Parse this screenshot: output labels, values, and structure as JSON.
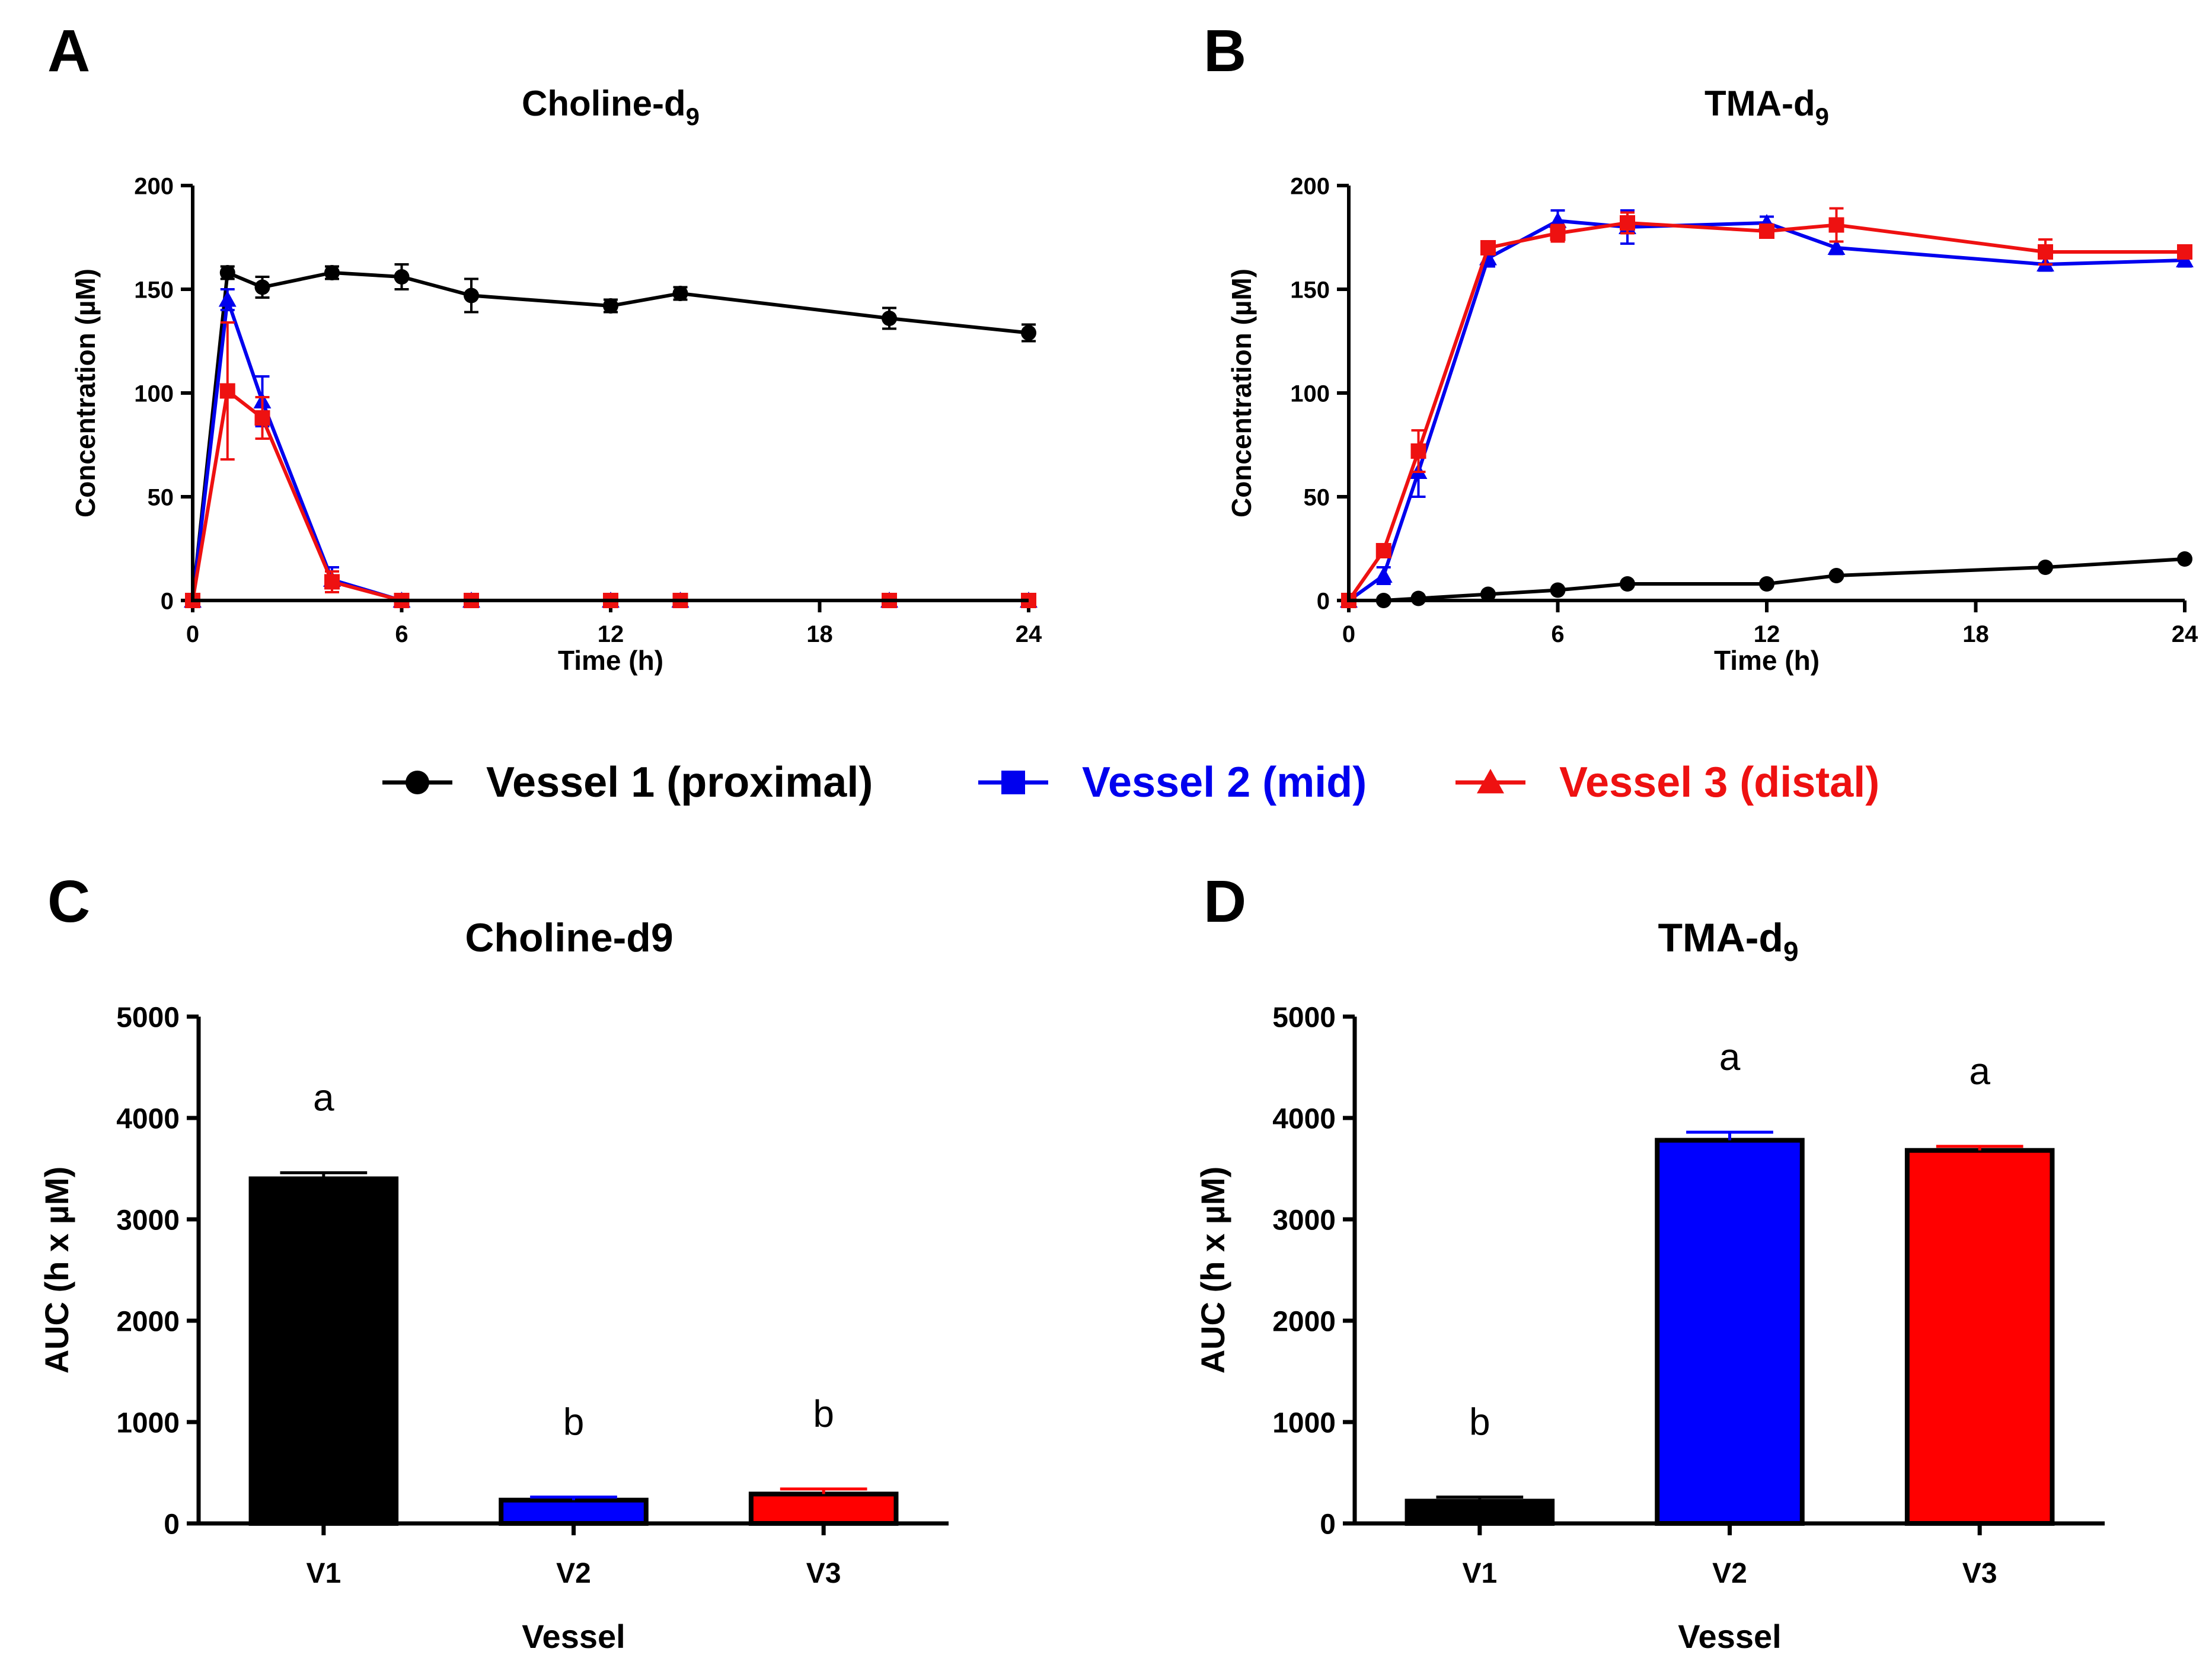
{
  "colors": {
    "v1": "#000000",
    "v2": "#0000EE",
    "v3": "#EE1111",
    "bar_v1": "#000000",
    "bar_v2": "#0000FF",
    "bar_v3": "#FF0000"
  },
  "legend": {
    "items": [
      {
        "label": "Vessel 1 (proximal)",
        "marker": "circle",
        "color": "#000000"
      },
      {
        "label": "Vessel 2 (mid)",
        "marker": "square",
        "color": "#0000EE"
      },
      {
        "label": "Vessel 3 (distal)",
        "marker": "triangle",
        "color": "#EE1111"
      }
    ]
  },
  "chart_data": [
    {
      "panel_letter": "A",
      "type": "line",
      "title": "Choline-d",
      "title_sub": "9",
      "xlabel": "Time (h)",
      "ylabel": "Concentration (µM)",
      "xlim": [
        0,
        24
      ],
      "ylim": [
        0,
        200
      ],
      "xticks": [
        "0",
        "6",
        "12",
        "18",
        "24"
      ],
      "yticks": [
        "0",
        "50",
        "100",
        "150",
        "200"
      ],
      "series": [
        {
          "name": "Vessel 1 (proximal)",
          "marker": "circle",
          "color": "#000000",
          "x": [
            0,
            1,
            2,
            4,
            6,
            8,
            12,
            14,
            20,
            24
          ],
          "y": [
            0,
            158,
            151,
            158,
            156,
            147,
            142,
            148,
            136,
            129
          ],
          "err": [
            0,
            3,
            5,
            3,
            6,
            8,
            3,
            3,
            5,
            4
          ]
        },
        {
          "name": "Vessel 2 (mid)",
          "marker": "triangle",
          "color": "#0000EE",
          "x": [
            0,
            1,
            2,
            4,
            6,
            8,
            12,
            14,
            20,
            24
          ],
          "y": [
            0,
            145,
            96,
            10,
            0,
            0,
            0,
            0,
            0,
            0
          ],
          "err": [
            0,
            5,
            12,
            6,
            0,
            0,
            0,
            0,
            0,
            0
          ]
        },
        {
          "name": "Vessel 3 (distal)",
          "marker": "square",
          "color": "#EE1111",
          "x": [
            0,
            1,
            2,
            4,
            6,
            8,
            12,
            14,
            20,
            24
          ],
          "y": [
            0,
            101,
            88,
            9,
            0,
            0,
            0,
            0,
            0,
            0
          ],
          "err": [
            0,
            33,
            10,
            5,
            0,
            0,
            0,
            0,
            0,
            0
          ]
        }
      ]
    },
    {
      "panel_letter": "B",
      "type": "line",
      "title": "TMA-d",
      "title_sub": "9",
      "xlabel": "Time (h)",
      "ylabel": "Concentration (µM)",
      "xlim": [
        0,
        24
      ],
      "ylim": [
        0,
        200
      ],
      "xticks": [
        "0",
        "6",
        "12",
        "18",
        "24"
      ],
      "yticks": [
        "0",
        "50",
        "100",
        "150",
        "200"
      ],
      "series": [
        {
          "name": "Vessel 1 (proximal)",
          "marker": "circle",
          "color": "#000000",
          "x": [
            0,
            1,
            2,
            4,
            6,
            8,
            12,
            14,
            20,
            24
          ],
          "y": [
            0,
            0,
            1,
            3,
            5,
            8,
            8,
            12,
            16,
            20
          ],
          "err": [
            0,
            0,
            0,
            1,
            1,
            1,
            1,
            1,
            1,
            1
          ]
        },
        {
          "name": "Vessel 2 (mid)",
          "marker": "triangle",
          "color": "#0000EE",
          "x": [
            0,
            1,
            2,
            4,
            6,
            8,
            12,
            14,
            20,
            24
          ],
          "y": [
            0,
            12,
            62,
            165,
            183,
            180,
            182,
            170,
            162,
            164
          ],
          "err": [
            0,
            4,
            12,
            4,
            5,
            8,
            3,
            3,
            3,
            3
          ]
        },
        {
          "name": "Vessel 3 (distal)",
          "marker": "square",
          "color": "#EE1111",
          "x": [
            0,
            1,
            2,
            4,
            6,
            8,
            12,
            14,
            20,
            24
          ],
          "y": [
            0,
            24,
            72,
            170,
            177,
            182,
            178,
            181,
            168,
            168
          ],
          "err": [
            0,
            3,
            10,
            3,
            4,
            5,
            3,
            8,
            6,
            3
          ]
        }
      ]
    },
    {
      "panel_letter": "C",
      "type": "bar",
      "title": "Choline-d9",
      "title_sub": "",
      "xlabel": "Vessel",
      "ylabel": "AUC  (h x µM)",
      "ylim": [
        0,
        5000
      ],
      "yticks": [
        "0",
        "1000",
        "2000",
        "3000",
        "4000",
        "5000"
      ],
      "categories": [
        "V1",
        "V2",
        "V3"
      ],
      "values": [
        3400,
        230,
        290
      ],
      "errors": [
        60,
        30,
        50
      ],
      "letters": [
        "a",
        "b",
        "b"
      ],
      "bar_colors": [
        "#000000",
        "#0000FF",
        "#FF0000"
      ]
    },
    {
      "panel_letter": "D",
      "type": "bar",
      "title": "TMA-d",
      "title_sub": "9",
      "xlabel": "Vessel",
      "ylabel": "AUC  (h x µM)",
      "ylim": [
        0,
        5000
      ],
      "yticks": [
        "0",
        "1000",
        "2000",
        "3000",
        "4000",
        "5000"
      ],
      "categories": [
        "V1",
        "V2",
        "V3"
      ],
      "values": [
        220,
        3780,
        3680
      ],
      "errors": [
        40,
        80,
        40
      ],
      "letters": [
        "b",
        "a",
        "a"
      ],
      "bar_colors": [
        "#000000",
        "#0000FF",
        "#FF0000"
      ]
    }
  ]
}
